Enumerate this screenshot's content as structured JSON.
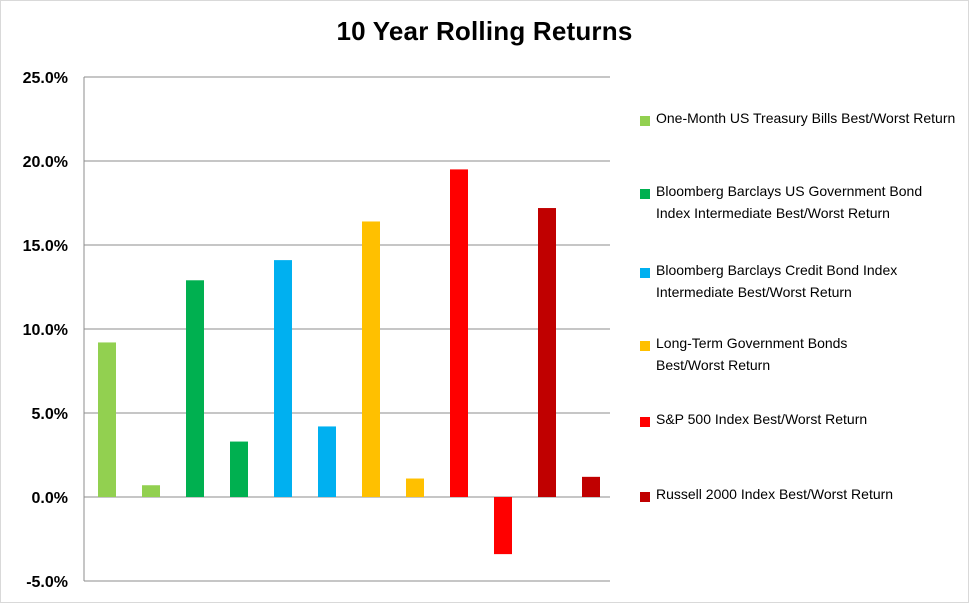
{
  "chart_data": {
    "type": "bar",
    "title": "10 Year Rolling Returns",
    "xlabel": "",
    "ylabel": "",
    "ylim": [
      -5.0,
      25.0
    ],
    "yticks": [
      "25.0%",
      "20.0%",
      "15.0%",
      "10.0%",
      "5.0%",
      "0.0%",
      "-5.0%"
    ],
    "ytick_values": [
      25,
      20,
      15,
      10,
      5,
      0,
      -5
    ],
    "grid": true,
    "legend_position": "right",
    "series": [
      {
        "name": "One-Month US Treasury Bills Best/Worst Return",
        "color": "#92d050",
        "values": [
          9.2,
          0.7
        ]
      },
      {
        "name": "Bloomberg Barclays US Government Bond Index Intermediate Best/Worst Return",
        "color": "#00b050",
        "values": [
          12.9,
          3.3
        ]
      },
      {
        "name": "Bloomberg Barclays Credit Bond Index Intermediate Best/Worst Return",
        "color": "#00b0f0",
        "values": [
          14.1,
          4.2
        ]
      },
      {
        "name": "Long-Term Government Bonds Best/Worst Return",
        "color": "#ffc000",
        "values": [
          16.4,
          1.1
        ]
      },
      {
        "name": "S&P 500 Index Best/Worst Return",
        "color": "#ff0000",
        "values": [
          19.5,
          -3.4
        ]
      },
      {
        "name": "Russell 2000 Index Best/Worst Return",
        "color": "#c00000",
        "values": [
          17.2,
          1.2
        ]
      }
    ]
  }
}
